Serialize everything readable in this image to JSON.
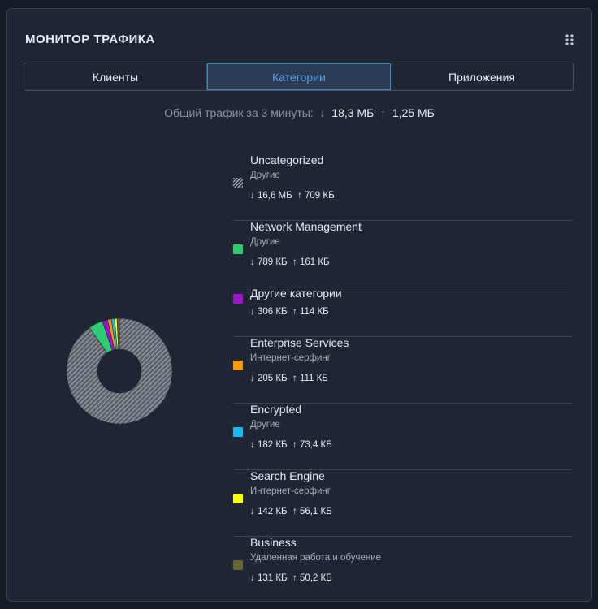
{
  "header": {
    "title": "МОНИТОР ТРАФИКА"
  },
  "tabs": [
    "Клиенты",
    "Категории",
    "Приложения"
  ],
  "active_tab": 1,
  "summary": {
    "label": "Общий трафик за 3 минуты:",
    "down": "18,3 МБ",
    "up": "1,25 МБ"
  },
  "chart_data": {
    "type": "donut",
    "categories": [
      "Uncategorized",
      "Network Management",
      "Другие категории",
      "Enterprise Services",
      "Encrypted",
      "Search Engine",
      "Business"
    ],
    "groups": [
      "Другие",
      "Другие",
      null,
      "Интернет-серфинг",
      "Другие",
      "Интернет-серфинг",
      "Удаленная работа и обучение"
    ],
    "values": [
      16600,
      789,
      306,
      205,
      182,
      142,
      131
    ],
    "value_labels": [
      "16,6 МБ",
      "789 КБ",
      "306 КБ",
      "205 КБ",
      "182 КБ",
      "142 КБ",
      "131 КБ"
    ],
    "upload_labels": [
      "709 КБ",
      "161 КБ",
      "114 КБ",
      "111 КБ",
      "73,4 КБ",
      "56,1 КБ",
      "50,2 КБ"
    ],
    "colors": [
      "#9aa0a8",
      "#2ecc71",
      "#9b17c9",
      "#ff9900",
      "#19b8f0",
      "#ffff00",
      "#66662e"
    ],
    "hatched_category": 0
  }
}
